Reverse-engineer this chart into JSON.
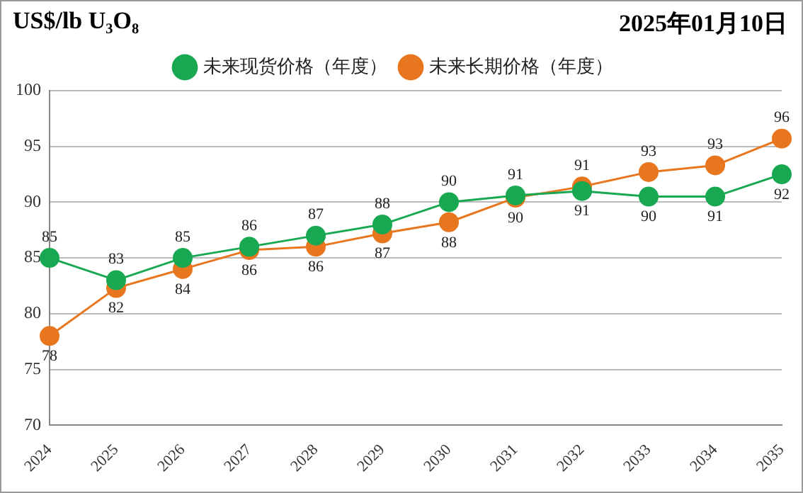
{
  "chart_data": {
    "type": "line",
    "title": "US$/lb U₃O₈",
    "subtitle": "2025年01月10日",
    "categories": [
      "2024",
      "2025",
      "2026",
      "2027",
      "2028",
      "2029",
      "2030",
      "2031",
      "2032",
      "2033",
      "2034",
      "2035"
    ],
    "series": [
      {
        "name": "未来现货价格（年度）",
        "color": "#19a852",
        "values": [
          85,
          83,
          85,
          86,
          87,
          88,
          90,
          90.6,
          91,
          90.5,
          90.5,
          92.5
        ],
        "value_labels": [
          "85",
          "83",
          "85",
          "86",
          "87",
          "88",
          "90",
          "91",
          "91",
          "90",
          "91",
          "92"
        ]
      },
      {
        "name": "未来长期价格（年度）",
        "color": "#e8761e",
        "values": [
          78,
          82.3,
          84,
          85.7,
          86,
          87.2,
          88.2,
          90.4,
          91.4,
          92.7,
          93.3,
          95.7
        ],
        "value_labels": [
          "78",
          "82",
          "84",
          "86",
          "86",
          "87",
          "88",
          "90",
          "91",
          "93",
          "93",
          "96"
        ]
      }
    ],
    "ylim": [
      70,
      100
    ],
    "yticks": [
      70,
      75,
      80,
      85,
      90,
      95,
      100
    ],
    "grid": "y",
    "legend": "top",
    "marker": "circle",
    "line_style": "solid"
  }
}
